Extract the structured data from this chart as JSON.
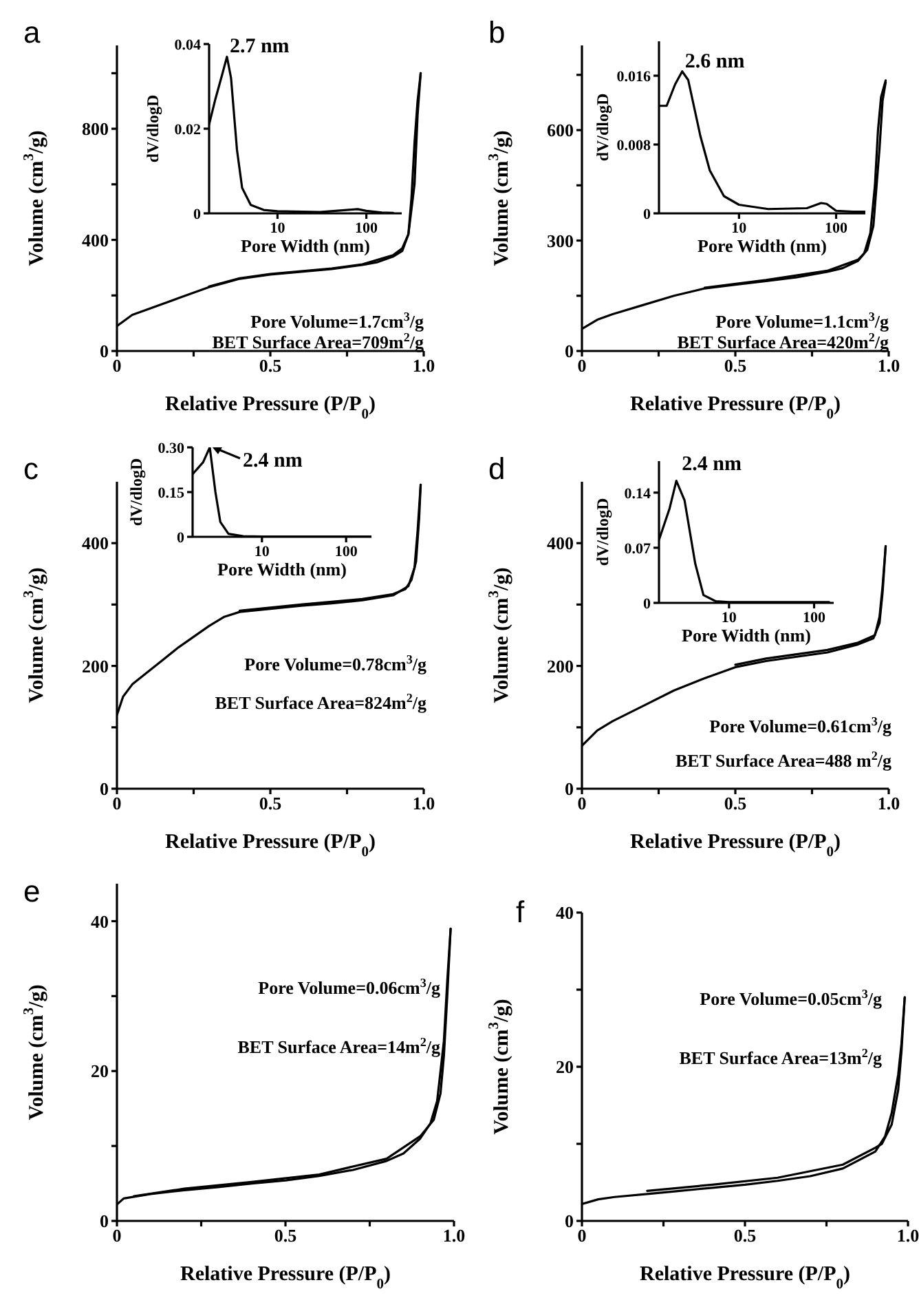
{
  "chart_data": [
    {
      "type": "line",
      "title": "a",
      "xlabel": "Relative Pressure (P/P$_{0}$)",
      "ylabel": "Volume (cm$^{3}$/g)",
      "marker": "none",
      "xlim": [
        0,
        1
      ],
      "ylim": [
        0,
        1100
      ],
      "xticks": [
        0,
        {
          "value": 0.25,
          "label": null
        },
        0.5,
        {
          "value": 0.75,
          "label": null
        },
        {
          "value": 1,
          "label": "1.0"
        }
      ],
      "yticks": [
        0,
        {
          "value": 200,
          "label": null
        },
        400,
        {
          "value": 600,
          "label": null
        },
        800,
        {
          "value": 1000,
          "label": null
        }
      ],
      "annotations": [
        "Pore Volume=1.7cm$^{3}$/g",
        "BET Surface Area=709m$^{2}$/g"
      ],
      "series": [
        {
          "color": "#000000",
          "x": [
            0,
            0.05,
            0.1,
            0.2,
            0.3,
            0.35,
            0.4,
            0.5,
            0.6,
            0.7,
            0.8,
            0.85,
            0.9,
            0.93,
            0.95,
            0.97,
            0.98,
            0.99
          ],
          "values": [
            90,
            130,
            150,
            190,
            230,
            245,
            260,
            275,
            285,
            295,
            310,
            320,
            340,
            360,
            420,
            600,
            850,
            1000
          ]
        },
        {
          "color": "#000000",
          "x": [
            0.3,
            0.4,
            0.5,
            0.7,
            0.8,
            0.9,
            0.93,
            0.95,
            0.96,
            0.97,
            0.98,
            0.99
          ],
          "values": [
            232,
            262,
            277,
            297,
            312,
            345,
            370,
            420,
            550,
            750,
            900,
            1000
          ]
        }
      ]
    },
    {
      "type": "line",
      "xlabel": "Pore Width (nm)",
      "ylabel": "dV/dlogD",
      "marker": "none",
      "log": "x",
      "xlim": [
        1.7,
        250
      ],
      "ylim": [
        0,
        0.04
      ],
      "xticks": [
        10,
        100
      ],
      "yticks": [
        0,
        0.02,
        0.04
      ],
      "annotations": [
        {
          "text": "2.7 nm",
          "x": 2.7,
          "y": 0.037
        }
      ],
      "series": [
        {
          "color": "#000000",
          "x": [
            1.7,
            2,
            2.4,
            2.7,
            3,
            3.5,
            4,
            5,
            7,
            10,
            30,
            60,
            80,
            100,
            150,
            200
          ],
          "values": [
            0.021,
            0.027,
            0.033,
            0.037,
            0.032,
            0.015,
            0.006,
            0.002,
            0.0008,
            0.0005,
            0.0003,
            0.0008,
            0.001,
            0.0006,
            0.0002,
            0.0001
          ]
        }
      ]
    },
    {
      "type": "line",
      "title": "b",
      "xlabel": "Relative Pressure (P/P$_{0}$)",
      "ylabel": "Volume (cm$^{3}$/g)",
      "marker": "none",
      "xlim": [
        0,
        1
      ],
      "ylim": [
        0,
        830
      ],
      "xticks": [
        0,
        {
          "value": 0.25,
          "label": null
        },
        0.5,
        {
          "value": 0.75,
          "label": null
        },
        {
          "value": 1,
          "label": "1.0"
        }
      ],
      "yticks": [
        0,
        {
          "value": 150,
          "label": null
        },
        300,
        {
          "value": 450,
          "label": null
        },
        600,
        {
          "value": 750,
          "label": null
        }
      ],
      "annotations": [
        "Pore Volume=1.1cm$^{3}$/g",
        "BET Surface Area=420m$^{2}$/g"
      ],
      "series": [
        {
          "color": "#000000",
          "x": [
            0,
            0.05,
            0.1,
            0.2,
            0.3,
            0.4,
            0.5,
            0.6,
            0.7,
            0.8,
            0.85,
            0.9,
            0.93,
            0.95,
            0.97,
            0.98,
            0.99
          ],
          "values": [
            60,
            85,
            100,
            125,
            150,
            170,
            180,
            190,
            200,
            215,
            225,
            245,
            275,
            340,
            550,
            680,
            730
          ]
        },
        {
          "color": "#000000",
          "x": [
            0.4,
            0.6,
            0.8,
            0.9,
            0.92,
            0.94,
            0.955,
            0.965,
            0.975,
            0.99
          ],
          "values": [
            172,
            193,
            218,
            248,
            265,
            320,
            450,
            600,
            690,
            735
          ]
        }
      ]
    },
    {
      "type": "line",
      "xlabel": "Pore Width (nm)",
      "ylabel": "dV/dlogD",
      "marker": "none",
      "log": "x",
      "xlim": [
        1.5,
        200
      ],
      "ylim": [
        0,
        0.02
      ],
      "xticks": [
        10,
        100
      ],
      "yticks": [
        0,
        0.008,
        0.016
      ],
      "annotations": [
        {
          "text": "2.6 nm",
          "x": 2.6,
          "y": 0.0165
        }
      ],
      "series": [
        {
          "color": "#000000",
          "x": [
            1.5,
            1.8,
            2.2,
            2.6,
            3,
            4,
            5,
            7,
            10,
            20,
            50,
            70,
            80,
            100,
            150,
            200
          ],
          "values": [
            0.0125,
            0.0125,
            0.015,
            0.0165,
            0.0155,
            0.009,
            0.005,
            0.002,
            0.001,
            0.0005,
            0.0006,
            0.0012,
            0.0011,
            0.0003,
            0.0002,
            0.0002
          ]
        }
      ]
    },
    {
      "type": "line",
      "title": "c",
      "xlabel": "Relative Pressure (P/P$_{0}$)",
      "ylabel": "Volume (cm$^{3}$/g)",
      "marker": "none",
      "xlim": [
        0,
        1
      ],
      "ylim": [
        0,
        500
      ],
      "xticks": [
        0,
        {
          "value": 0.25,
          "label": null
        },
        0.5,
        {
          "value": 0.75,
          "label": null
        },
        {
          "value": 1,
          "label": "1.0"
        }
      ],
      "yticks": [
        0,
        {
          "value": 100,
          "label": null
        },
        200,
        {
          "value": 300,
          "label": null
        },
        400
      ],
      "annotations": [
        "Pore Volume=0.78cm$^{3}$/g",
        "BET Surface Area=824m$^{2}$/g"
      ],
      "series": [
        {
          "color": "#000000",
          "x": [
            0,
            0.02,
            0.05,
            0.1,
            0.15,
            0.2,
            0.3,
            0.35,
            0.4,
            0.5,
            0.6,
            0.7,
            0.8,
            0.9,
            0.95,
            0.97,
            0.98,
            0.99
          ],
          "values": [
            120,
            150,
            170,
            190,
            210,
            230,
            265,
            280,
            288,
            293,
            298,
            302,
            307,
            315,
            330,
            360,
            420,
            495
          ]
        },
        {
          "color": "#000000",
          "x": [
            0.4,
            0.6,
            0.8,
            0.9,
            0.94,
            0.96,
            0.975,
            0.985,
            0.99
          ],
          "values": [
            290,
            300,
            309,
            317,
            325,
            340,
            370,
            440,
            495
          ]
        }
      ]
    },
    {
      "type": "line",
      "xlabel": "Pore Width (nm)",
      "ylabel": "dV/dlogD",
      "marker": "none",
      "log": "x",
      "xlim": [
        1.5,
        200
      ],
      "ylim": [
        0,
        0.3
      ],
      "xticks": [
        10,
        100
      ],
      "yticks": [
        0,
        0.15,
        {
          "value": 0.3,
          "label": "0.30"
        }
      ],
      "annotations": [
        {
          "text": "2.4 nm",
          "x": 2.4,
          "y": 0.3
        }
      ],
      "series": [
        {
          "color": "#000000",
          "x": [
            1.5,
            2,
            2.4,
            2.8,
            3.2,
            4,
            6,
            10,
            200
          ],
          "values": [
            0.21,
            0.25,
            0.3,
            0.15,
            0.05,
            0.01,
            0.002,
            0.001,
            0.001
          ]
        }
      ]
    },
    {
      "type": "line",
      "title": "d",
      "xlabel": "Relative Pressure (P/P$_{0}$)",
      "ylabel": "Volume (cm$^{3}$/g)",
      "marker": "none",
      "xlim": [
        0,
        1
      ],
      "ylim": [
        0,
        500
      ],
      "xticks": [
        0,
        {
          "value": 0.25,
          "label": null
        },
        0.5,
        {
          "value": 0.75,
          "label": null
        },
        {
          "value": 1,
          "label": "1.0"
        }
      ],
      "yticks": [
        0,
        {
          "value": 100,
          "label": null
        },
        200,
        {
          "value": 300,
          "label": null
        },
        400
      ],
      "annotations": [
        "Pore Volume=0.61cm$^{3}$/g",
        "BET Surface Area=488 m$^{2}$/g"
      ],
      "series": [
        {
          "color": "#000000",
          "x": [
            0,
            0.05,
            0.1,
            0.2,
            0.3,
            0.4,
            0.5,
            0.6,
            0.7,
            0.8,
            0.9,
            0.95,
            0.97,
            0.98,
            0.99
          ],
          "values": [
            70,
            95,
            110,
            135,
            160,
            180,
            198,
            208,
            215,
            222,
            235,
            245,
            270,
            320,
            395
          ]
        },
        {
          "color": "#000000",
          "x": [
            0.5,
            0.6,
            0.8,
            0.9,
            0.955,
            0.97,
            0.98,
            0.99
          ],
          "values": [
            202,
            212,
            226,
            238,
            250,
            280,
            330,
            395
          ]
        }
      ]
    },
    {
      "type": "line",
      "xlabel": "Pore Width (nm)",
      "ylabel": "dV/dlogD",
      "marker": "none",
      "log": "x",
      "xlim": [
        1.5,
        170
      ],
      "ylim": [
        0,
        0.18
      ],
      "xticks": [
        10,
        100
      ],
      "yticks": [
        0,
        0.07,
        0.14
      ],
      "annotations": [
        {
          "text": "2.4 nm",
          "x": 2.4,
          "y": 0.155
        }
      ],
      "series": [
        {
          "color": "#000000",
          "x": [
            1.5,
            2,
            2.4,
            3,
            4,
            5,
            7,
            10,
            150
          ],
          "values": [
            0.08,
            0.12,
            0.155,
            0.13,
            0.05,
            0.01,
            0.002,
            0.001,
            0.001
          ]
        }
      ]
    },
    {
      "type": "line",
      "title": "e",
      "xlabel": "Relative Pressure (P/P$_{0}$)",
      "ylabel": "Volume (cm$^{3}$/g)",
      "marker": "none",
      "xlim": [
        0,
        1
      ],
      "ylim": [
        0,
        45
      ],
      "xticks": [
        0,
        {
          "value": 0.25,
          "label": null
        },
        0.5,
        {
          "value": 0.75,
          "label": null
        },
        {
          "value": 1,
          "label": "1.0"
        }
      ],
      "yticks": [
        0,
        {
          "value": 10,
          "label": null
        },
        20,
        {
          "value": 30,
          "label": null
        },
        40
      ],
      "annotations": [
        "Pore Volume=0.06cm$^{3}$/g",
        "BET Surface Area=14m$^{2}$/g"
      ],
      "series": [
        {
          "color": "#000000",
          "x": [
            0,
            0.02,
            0.1,
            0.2,
            0.3,
            0.4,
            0.5,
            0.6,
            0.7,
            0.8,
            0.85,
            0.9,
            0.93,
            0.95,
            0.97,
            0.98,
            0.99
          ],
          "values": [
            2.2,
            3,
            3.6,
            4.1,
            4.5,
            5,
            5.4,
            6,
            6.8,
            8,
            9,
            11,
            13,
            16,
            24,
            32,
            39
          ]
        },
        {
          "color": "#000000",
          "x": [
            0.05,
            0.2,
            0.4,
            0.6,
            0.8,
            0.9,
            0.94,
            0.96,
            0.97,
            0.98,
            0.99
          ],
          "values": [
            3.3,
            4.3,
            5.2,
            6.2,
            8.3,
            11.3,
            13.5,
            17,
            22,
            30,
            39
          ]
        }
      ]
    },
    {
      "type": "line",
      "title": "f",
      "xlabel": "Relative Pressure (P/P$_{0}$)",
      "ylabel": "Volume (cm$^{3}$/g)",
      "marker": "none",
      "xlim": [
        0,
        1
      ],
      "ylim": [
        0,
        40
      ],
      "xticks": [
        0,
        {
          "value": 0.25,
          "label": null
        },
        0.5,
        {
          "value": 0.75,
          "label": null
        },
        {
          "value": 1,
          "label": "1.0"
        }
      ],
      "yticks": [
        0,
        {
          "value": 10,
          "label": null
        },
        20,
        {
          "value": 30,
          "label": null
        },
        40
      ],
      "annotations": [
        "Pore Volume=0.05cm$^{3}$/g",
        "BET Surface Area=13m$^{2}$/g"
      ],
      "series": [
        {
          "color": "#000000",
          "x": [
            0,
            0.05,
            0.1,
            0.2,
            0.3,
            0.4,
            0.5,
            0.6,
            0.7,
            0.8,
            0.9,
            0.93,
            0.95,
            0.97,
            0.98,
            0.99
          ],
          "values": [
            2.2,
            2.8,
            3.1,
            3.5,
            3.9,
            4.3,
            4.7,
            5.2,
            5.8,
            6.8,
            9,
            11,
            14,
            19,
            23,
            29
          ]
        },
        {
          "color": "#000000",
          "x": [
            0.2,
            0.4,
            0.6,
            0.8,
            0.9,
            0.92,
            0.95,
            0.97,
            0.98,
            0.99
          ],
          "values": [
            3.9,
            4.7,
            5.6,
            7.3,
            9.5,
            10,
            12.5,
            17,
            22,
            29
          ]
        }
      ]
    }
  ]
}
